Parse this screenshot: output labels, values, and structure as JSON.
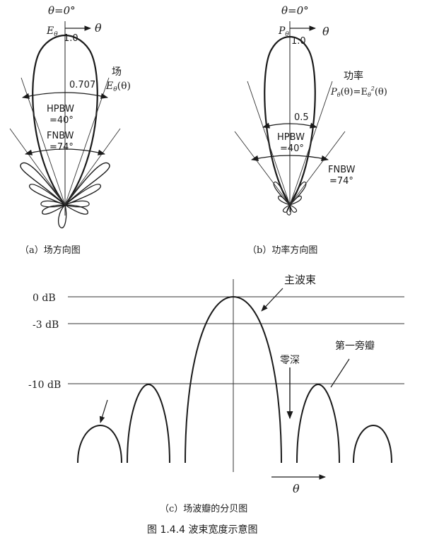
{
  "panel_a": {
    "theta0": "θ=0°",
    "e_label": "E",
    "e_sub": "θ",
    "theta_arrow_label": "θ",
    "peak": "1.0",
    "half": "0.707",
    "field_title": "场",
    "field_fn": "E",
    "field_fn_sub": "θ",
    "field_fn_arg": "(θ)",
    "hpbw_line1": "HPBW",
    "hpbw_line2": "=40°",
    "fnbw_line1": "FNBW",
    "fnbw_line2": "=74°",
    "caption": "（a）场方向图"
  },
  "panel_b": {
    "theta0": "θ=0°",
    "p_label": "P",
    "p_sub": "θ",
    "theta_arrow_label": "θ",
    "peak": "1.0",
    "half": "0.5",
    "power_title": "功率",
    "power_fn": "P",
    "power_fn_sub": "θ",
    "power_fn_rest": "(θ)=E",
    "power_fn_sq_sub": "θ",
    "power_fn_sq_sup": "2",
    "power_fn_end": "(θ)",
    "hpbw_line1": "HPBW",
    "hpbw_line2": "=40°",
    "fnbw_line1": "FNBW",
    "fnbw_line2": "=74°",
    "caption": "（b）功率方向图"
  },
  "panel_c": {
    "db_0": "0 dB",
    "db_3": "-3 dB",
    "db_10": "-10 dB",
    "main_beam": "主波束",
    "null_depth": "零深",
    "first_sidelobe": "第一旁瓣",
    "theta_label": "θ",
    "caption": "（c）场波瓣的分贝图"
  },
  "figure_caption": "图 1.4.4   波束宽度示意图"
}
